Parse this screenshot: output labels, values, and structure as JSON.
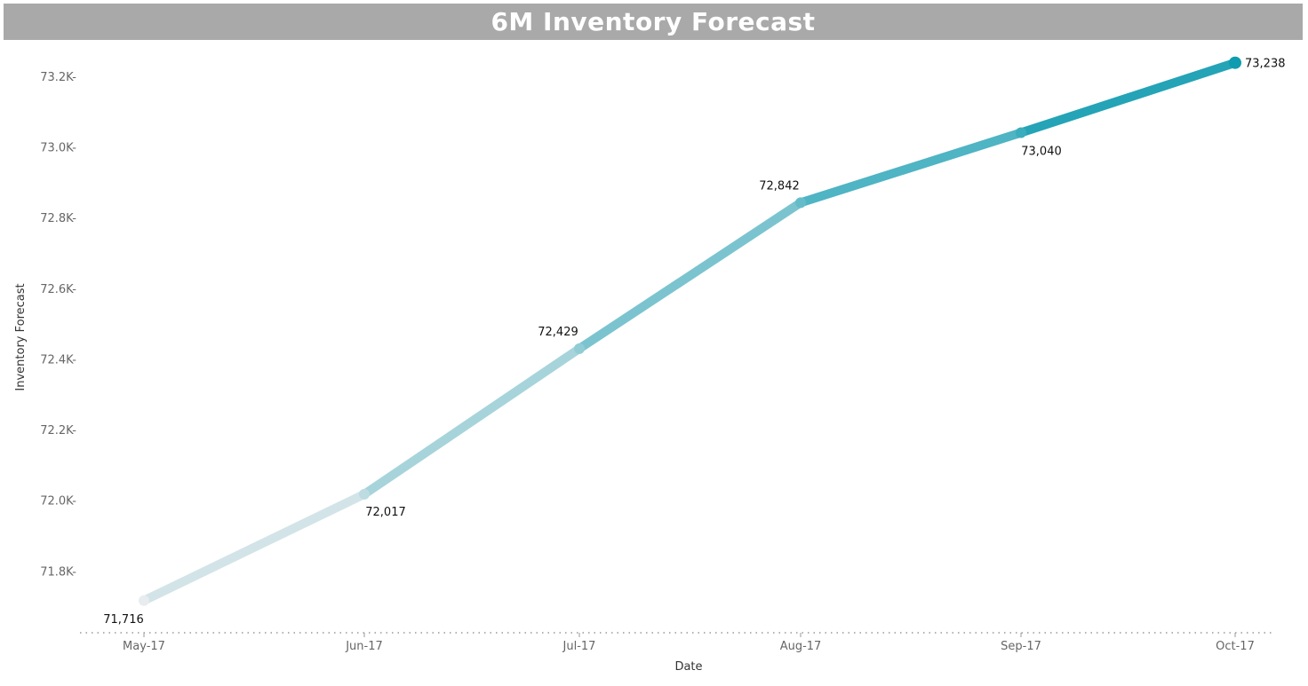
{
  "chart_data": {
    "type": "line",
    "title": "6M Inventory Forecast",
    "xlabel": "Date",
    "ylabel": "Inventory Forecast",
    "categories": [
      "May-17",
      "Jun-17",
      "Jul-17",
      "Aug-17",
      "Sep-17",
      "Oct-17"
    ],
    "series": [
      {
        "values": [
          71716,
          72017,
          72429,
          72842,
          73040,
          73238
        ]
      }
    ],
    "data_labels": [
      "71,716",
      "72,017",
      "72,429",
      "72,842",
      "73,040",
      "73,238"
    ],
    "y_ticks": [
      71800,
      72000,
      72200,
      72400,
      72600,
      72800,
      73000,
      73200
    ],
    "y_tick_labels": [
      "71.8K",
      "72.0K",
      "72.2K",
      "72.4K",
      "72.6K",
      "72.8K",
      "73.0K",
      "73.2K"
    ],
    "ylim": [
      71625,
      73290
    ],
    "grid": false,
    "colors": {
      "start": "#e8ecee",
      "end": "#0e9cb0",
      "title_bar": "#a9a9a9"
    }
  }
}
